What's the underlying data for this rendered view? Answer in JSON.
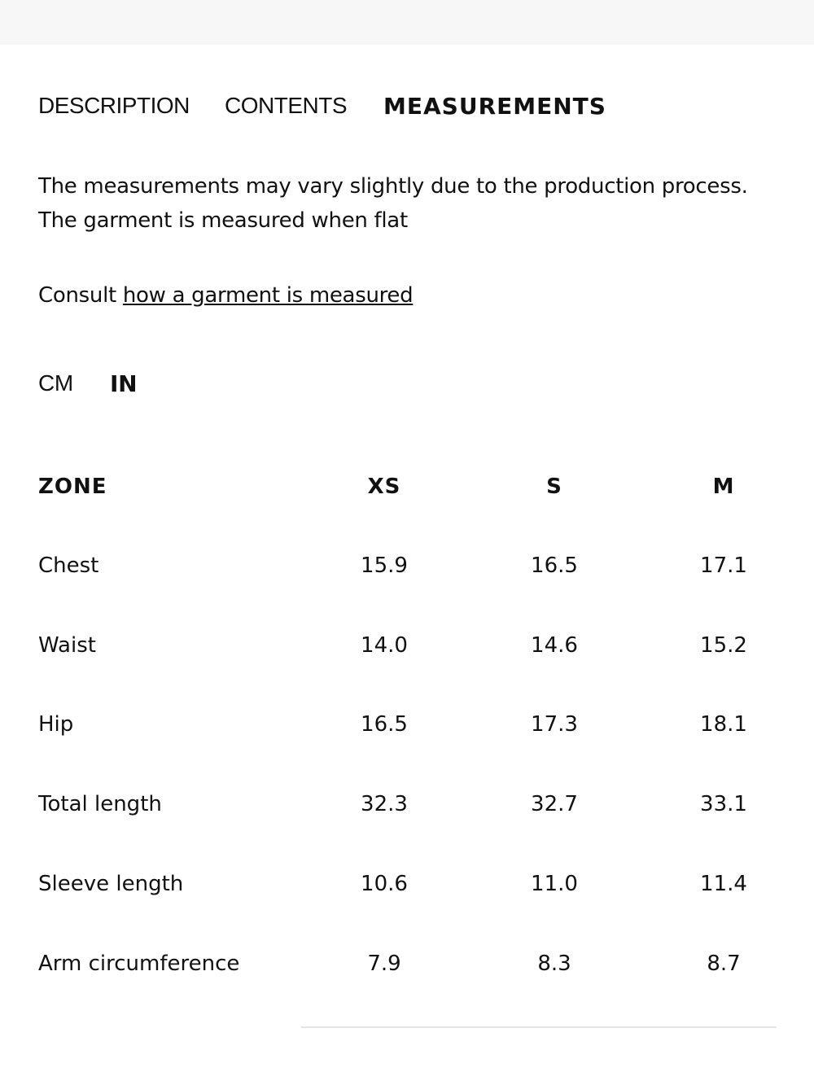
{
  "tabs": [
    "DESCRIPTION",
    "CONTENTS",
    "MEASUREMENTS"
  ],
  "intro": [
    "The measurements may vary slightly due to the production process.",
    "The garment is measured when flat"
  ],
  "consult": {
    "text": "Consult",
    "link": "how a garment is measured"
  },
  "units": [
    "CM",
    "IN"
  ],
  "table": {
    "header": [
      "ZONE",
      "XS",
      "S",
      "M"
    ],
    "rows": [
      [
        "Chest",
        "15.9",
        "16.5",
        "17.1"
      ],
      [
        "Waist",
        "14.0",
        "14.6",
        "15.2"
      ],
      [
        "Hip",
        "16.5",
        "17.3",
        "18.1"
      ],
      [
        "Total length",
        "32.3",
        "32.7",
        "33.1"
      ],
      [
        "Sleeve length",
        "10.6",
        "11.0",
        "11.4"
      ],
      [
        "Arm circumference",
        "7.9",
        "8.3",
        "8.7"
      ]
    ]
  }
}
